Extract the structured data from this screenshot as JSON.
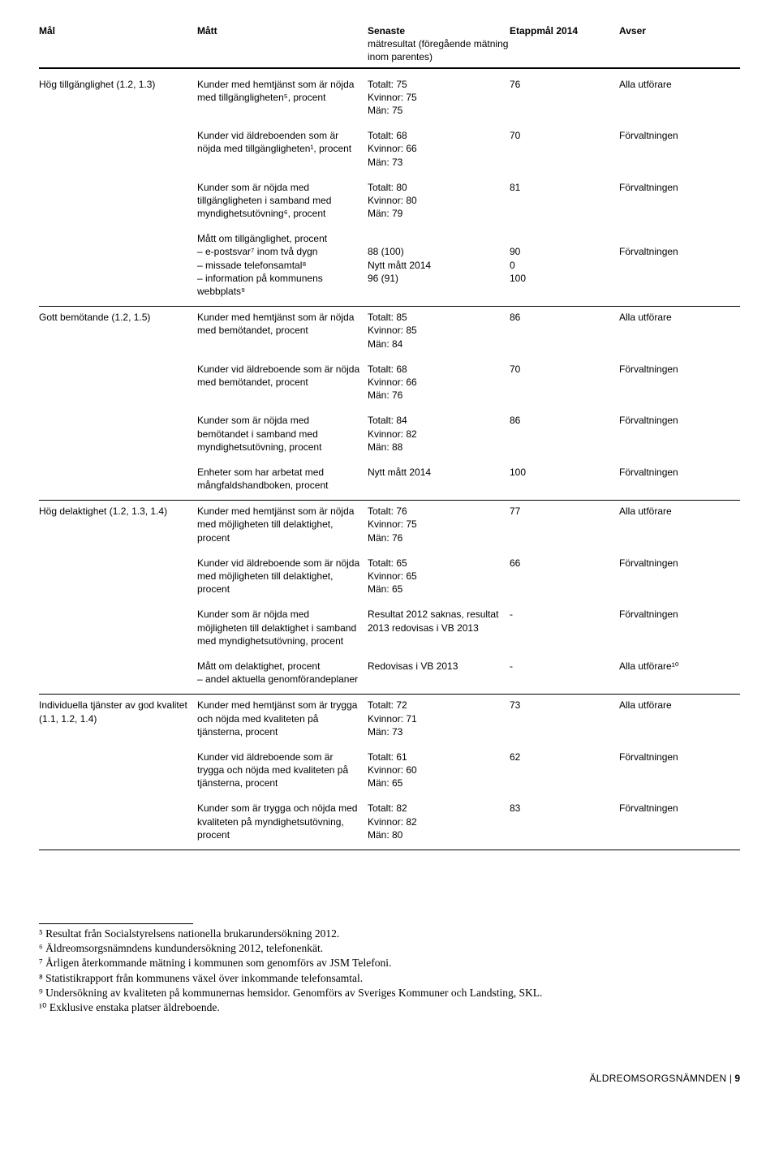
{
  "header": {
    "mal": "Mål",
    "matt": "Mått",
    "senaste": "Senaste",
    "senaste_sub": "mätresultat (föregående mätning inom parentes)",
    "etapp": "Etappmål 2014",
    "avser": "Avser"
  },
  "sections": [
    {
      "mal": "Hög tillgänglighet (1.2, 1.3)",
      "rows": [
        {
          "matt": "Kunder med hemtjänst som är nöjda med tillgängligheten⁵, procent",
          "senaste": "Totalt: 75\nKvinnor: 75\nMän: 75",
          "etapp": "76",
          "avser": "Alla utförare"
        },
        {
          "matt": "Kunder vid äldreboenden som är nöjda med tillgängligheten¹, procent",
          "senaste": "Totalt: 68\nKvinnor: 66\nMän: 73",
          "etapp": "70",
          "avser": "Förvaltningen"
        },
        {
          "matt": "Kunder som är nöjda med tillgängligheten i samband med myndighetsutövning⁶, procent",
          "senaste": "Totalt: 80\nKvinnor: 80\nMän: 79",
          "etapp": "81",
          "avser": "Förvaltningen"
        },
        {
          "matt": "Mått om tillgänglighet, procent\n– e-postsvar⁷ inom två dygn\n– missade telefonsamtal⁸\n– information på kommunens webbplats⁹",
          "senaste": "\n88 (100)\nNytt mått 2014\n96 (91)",
          "etapp": "\n90\n0\n100",
          "avser": "\nFörvaltningen"
        }
      ]
    },
    {
      "mal": "Gott bemötande (1.2, 1.5)",
      "rows": [
        {
          "matt": "Kunder med hemtjänst som är nöjda med bemötandet, procent",
          "senaste": "Totalt: 85\nKvinnor: 85\nMän: 84",
          "etapp": "86",
          "avser": "Alla utförare"
        },
        {
          "matt": "Kunder vid äldreboende som är nöjda med bemötandet, procent",
          "senaste": "Totalt: 68\nKvinnor: 66\nMän: 76",
          "etapp": "70",
          "avser": "Förvaltningen"
        },
        {
          "matt": "Kunder som är nöjda med bemötandet i samband med myndighetsutövning, procent",
          "senaste": "Totalt: 84\nKvinnor: 82\nMän: 88",
          "etapp": "86",
          "avser": "Förvaltningen"
        },
        {
          "matt": "Enheter som har arbetat med mångfaldshandboken, procent",
          "senaste": "Nytt mått 2014",
          "etapp": "100",
          "avser": "Förvaltningen"
        }
      ]
    },
    {
      "mal": "Hög delaktighet (1.2, 1.3, 1.4)",
      "rows": [
        {
          "matt": "Kunder med hemtjänst som är nöjda med möjligheten till delaktighet, procent",
          "senaste": "Totalt: 76\nKvinnor: 75\nMän: 76",
          "etapp": "77",
          "avser": "Alla utförare"
        },
        {
          "matt": "Kunder vid äldreboende som är nöjda med möjligheten till delaktighet, procent",
          "senaste": "Totalt: 65\nKvinnor: 65\nMän: 65",
          "etapp": "66",
          "avser": "Förvaltningen"
        },
        {
          "matt": "Kunder som är nöjda med möjligheten till delaktighet i samband med myndighetsutövning, procent",
          "senaste": "Resultat 2012 saknas, resultat 2013 redovisas i VB 2013",
          "etapp": "-",
          "avser": "Förvaltningen"
        },
        {
          "matt": "Mått om delaktighet, procent\n– andel aktuella genomförandeplaner",
          "senaste": "Redovisas i VB 2013",
          "etapp": "-",
          "avser": "Alla utförare¹⁰"
        }
      ]
    },
    {
      "mal": "Individuella tjänster av god kvalitet (1.1, 1.2, 1.4)",
      "rows": [
        {
          "matt": "Kunder med hemtjänst som är trygga och nöjda med kvaliteten på tjänsterna, procent",
          "senaste": "Totalt: 72\nKvinnor: 71\nMän: 73",
          "etapp": "73",
          "avser": "Alla utförare"
        },
        {
          "matt": "Kunder vid äldreboende som är trygga och nöjda med kvaliteten på tjänsterna, procent",
          "senaste": "Totalt: 61\nKvinnor: 60\nMän: 65",
          "etapp": "62",
          "avser": "Förvaltningen"
        },
        {
          "matt": "Kunder som är trygga och nöjda med kvaliteten på myndighetsutövning, procent",
          "senaste": "Totalt: 82\nKvinnor: 82\nMän: 80",
          "etapp": "83",
          "avser": "Förvaltningen"
        }
      ]
    }
  ],
  "footnotes": [
    "⁵ Resultat från Socialstyrelsens nationella brukarundersökning 2012.",
    "⁶ Äldreomsorgsnämndens kundundersökning 2012, telefonenkät.",
    "⁷ Årligen återkommande mätning i kommunen som genomförs av JSM Telefoni.",
    "⁸ Statistikrapport från kommunens växel över inkommande telefonsamtal.",
    "⁹ Undersökning av kvaliteten på kommunernas hemsidor. Genomförs av Sveriges Kommuner och Landsting, SKL.",
    "¹⁰ Exklusive enstaka platser äldreboende."
  ],
  "footer": {
    "source": "ÄLDREOMSORGSNÄMNDEN",
    "sep": " | ",
    "page": "9"
  }
}
